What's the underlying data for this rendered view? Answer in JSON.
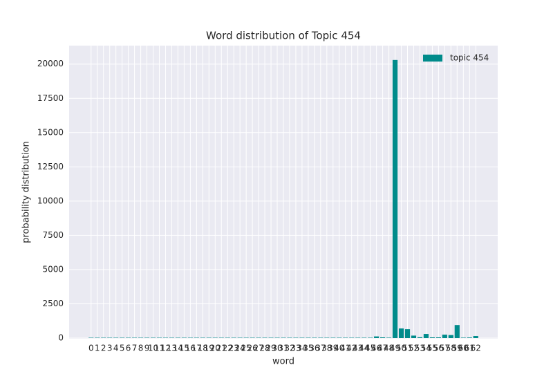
{
  "chart_data": {
    "type": "bar",
    "title": "Word distribution of Topic 454",
    "x_label": "word",
    "y_label": "probability distribution",
    "categories": [
      "0",
      "1",
      "2",
      "3",
      "4",
      "5",
      "6",
      "7",
      "8",
      "9",
      "10",
      "11",
      "12",
      "13",
      "14",
      "15",
      "16",
      "17",
      "18",
      "19",
      "20",
      "21",
      "22",
      "23",
      "24",
      "25",
      "26",
      "27",
      "28",
      "29",
      "30",
      "31",
      "32",
      "33",
      "34",
      "35",
      "36",
      "37",
      "38",
      "39",
      "40",
      "41",
      "42",
      "43",
      "44",
      "45",
      "46",
      "47",
      "48",
      "49",
      "50",
      "51",
      "52",
      "53",
      "54",
      "55",
      "56",
      "57",
      "58",
      "59",
      "60",
      "61",
      "62"
    ],
    "series": [
      {
        "name": "topic 454",
        "color": "#008b8b",
        "values": [
          25,
          25,
          25,
          25,
          25,
          25,
          25,
          25,
          25,
          25,
          25,
          25,
          25,
          25,
          25,
          25,
          25,
          25,
          25,
          25,
          25,
          25,
          25,
          25,
          25,
          25,
          25,
          25,
          25,
          25,
          25,
          25,
          25,
          25,
          25,
          25,
          25,
          25,
          25,
          25,
          25,
          25,
          25,
          25,
          25,
          25,
          120,
          50,
          30,
          20300,
          700,
          650,
          180,
          60,
          300,
          50,
          50,
          250,
          220,
          950,
          30,
          40,
          150
        ]
      }
    ],
    "ylim": [
      0,
      21350
    ],
    "yticks": [
      0,
      2500,
      5000,
      7500,
      10000,
      12500,
      15000,
      17500,
      20000
    ],
    "grid": true,
    "legend": "upper right"
  }
}
